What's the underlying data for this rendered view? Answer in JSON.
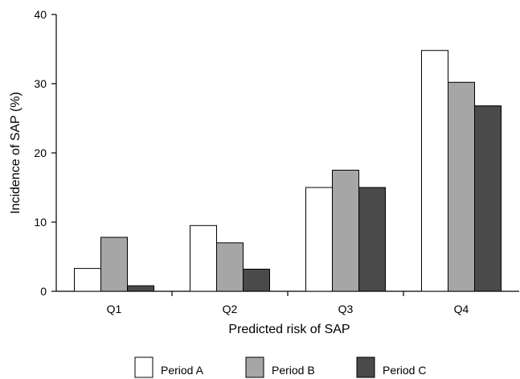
{
  "chart_data": {
    "type": "bar",
    "categories": [
      "Q1",
      "Q2",
      "Q3",
      "Q4"
    ],
    "series": [
      {
        "name": "Period A",
        "values": [
          3.3,
          9.5,
          15.0,
          34.8
        ],
        "color": "#ffffff"
      },
      {
        "name": "Period B",
        "values": [
          7.8,
          7.0,
          17.5,
          30.2
        ],
        "color": "#a6a6a6"
      },
      {
        "name": "Period C",
        "values": [
          0.8,
          3.2,
          15.0,
          26.8
        ],
        "color": "#4a4a4a"
      }
    ],
    "title": "",
    "xlabel": "Predicted risk of SAP",
    "ylabel": "Incidence of SAP (%)",
    "ylim": [
      0,
      40
    ],
    "yticks": [
      0,
      10,
      20,
      30,
      40
    ],
    "grid": false,
    "legend_position": "bottom"
  }
}
